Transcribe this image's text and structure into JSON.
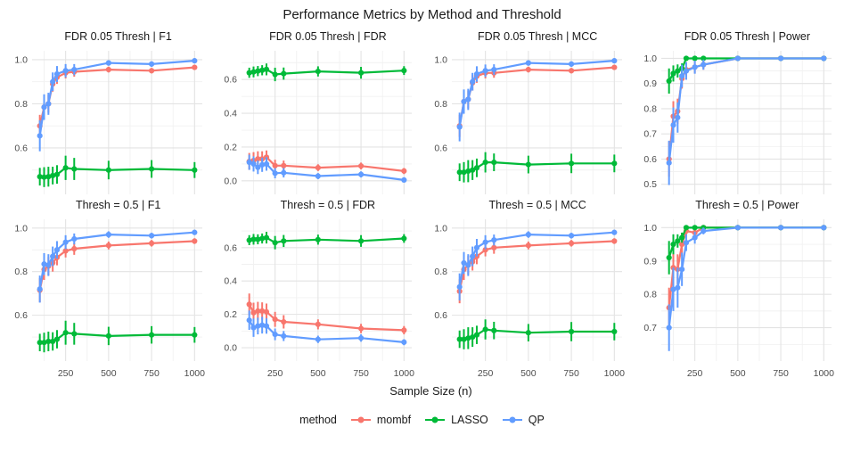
{
  "figure": {
    "title": "Performance Metrics by Method and Threshold",
    "x_axis_label": "Sample Size (n)"
  },
  "legend": {
    "label": "method",
    "position": "bottom",
    "items": [
      {
        "name": "mombf",
        "color": "#F8766D"
      },
      {
        "name": "LASSO",
        "color": "#00BA38"
      },
      {
        "name": "QP",
        "color": "#619CFF"
      }
    ]
  },
  "chart_data": {
    "type": "line",
    "title": "Performance Metrics by Method and Threshold",
    "xlabel": "Sample Size (n)",
    "x": [
      100,
      125,
      150,
      175,
      200,
      250,
      300,
      500,
      750,
      1000
    ],
    "xticks": [
      250,
      500,
      750,
      1000
    ],
    "xlim": [
      55,
      1045
    ],
    "grid": "major+minor",
    "error_bars": true,
    "facet_rows": [
      "FDR 0.05 Thresh",
      "Thresh = 0.5"
    ],
    "facet_cols": [
      "F1",
      "FDR",
      "MCC",
      "Power"
    ],
    "panels": [
      {
        "title": "FDR 0.05 Thresh | F1",
        "metric": "F1",
        "threshold": "FDR 0.05 Thresh",
        "yticks": [
          0.6,
          0.8,
          1.0
        ],
        "ylim": [
          0.39,
          1.04
        ],
        "series": [
          {
            "name": "mombf",
            "values": [
              0.7,
              0.785,
              0.8,
              0.89,
              0.92,
              0.94,
              0.945,
              0.955,
              0.95,
              0.965
            ],
            "err": [
              0.05,
              0.045,
              0.04,
              0.035,
              0.03,
              0.025,
              0.022,
              0.013,
              0.012,
              0.01
            ]
          },
          {
            "name": "LASSO",
            "values": [
              0.47,
              0.468,
              0.47,
              0.475,
              0.48,
              0.51,
              0.505,
              0.5,
              0.505,
              0.5
            ],
            "err": [
              0.04,
              0.045,
              0.045,
              0.04,
              0.042,
              0.055,
              0.05,
              0.042,
              0.04,
              0.036
            ]
          },
          {
            "name": "QP",
            "values": [
              0.655,
              0.785,
              0.8,
              0.9,
              0.935,
              0.95,
              0.955,
              0.985,
              0.98,
              0.995
            ],
            "err": [
              0.07,
              0.058,
              0.05,
              0.042,
              0.036,
              0.03,
              0.025,
              0.012,
              0.012,
              0.008
            ]
          }
        ]
      },
      {
        "title": "FDR 0.05 Thresh | FDR",
        "metric": "FDR",
        "threshold": "FDR 0.05 Thresh",
        "yticks": [
          0.0,
          0.2,
          0.4,
          0.6
        ],
        "ylim": [
          -0.08,
          0.77
        ],
        "series": [
          {
            "name": "mombf",
            "values": [
              0.115,
              0.12,
              0.13,
              0.13,
              0.14,
              0.09,
              0.09,
              0.078,
              0.088,
              0.058
            ],
            "err": [
              0.05,
              0.05,
              0.045,
              0.045,
              0.04,
              0.035,
              0.03,
              0.02,
              0.02,
              0.018
            ]
          },
          {
            "name": "LASSO",
            "values": [
              0.64,
              0.645,
              0.65,
              0.655,
              0.66,
              0.63,
              0.635,
              0.648,
              0.64,
              0.653
            ],
            "err": [
              0.03,
              0.032,
              0.03,
              0.03,
              0.035,
              0.04,
              0.036,
              0.03,
              0.035,
              0.026
            ]
          },
          {
            "name": "QP",
            "values": [
              0.11,
              0.1,
              0.08,
              0.095,
              0.1,
              0.045,
              0.048,
              0.028,
              0.038,
              0.005
            ],
            "err": [
              0.045,
              0.045,
              0.04,
              0.042,
              0.04,
              0.03,
              0.028,
              0.018,
              0.018,
              0.01
            ]
          }
        ]
      },
      {
        "title": "FDR 0.05 Thresh | MCC",
        "metric": "MCC",
        "threshold": "FDR 0.05 Thresh",
        "yticks": [
          0.6,
          0.8,
          1.0
        ],
        "ylim": [
          0.39,
          1.04
        ],
        "series": [
          {
            "name": "mombf",
            "values": [
              0.7,
              0.81,
              0.82,
              0.895,
              0.925,
              0.94,
              0.94,
              0.955,
              0.95,
              0.965
            ],
            "err": [
              0.05,
              0.045,
              0.04,
              0.035,
              0.03,
              0.025,
              0.022,
              0.013,
              0.012,
              0.01
            ]
          },
          {
            "name": "LASSO",
            "values": [
              0.49,
              0.49,
              0.495,
              0.5,
              0.51,
              0.535,
              0.535,
              0.525,
              0.53,
              0.53
            ],
            "err": [
              0.04,
              0.046,
              0.05,
              0.045,
              0.042,
              0.046,
              0.04,
              0.04,
              0.044,
              0.04
            ]
          },
          {
            "name": "QP",
            "values": [
              0.695,
              0.81,
              0.82,
              0.9,
              0.935,
              0.95,
              0.955,
              0.985,
              0.98,
              0.995
            ],
            "err": [
              0.065,
              0.055,
              0.048,
              0.04,
              0.035,
              0.028,
              0.024,
              0.012,
              0.012,
              0.008
            ]
          }
        ]
      },
      {
        "title": "FDR 0.05 Thresh | Power",
        "metric": "Power",
        "threshold": "FDR 0.05 Thresh",
        "yticks": [
          0.5,
          0.6,
          0.7,
          0.8,
          0.9,
          1.0
        ],
        "ylim": [
          0.46,
          1.03
        ],
        "series": [
          {
            "name": "mombf",
            "values": [
              0.6,
              0.77,
              0.79,
              0.92,
              0.955,
              0.965,
              0.975,
              1.0,
              1.0,
              1.0
            ],
            "err": [
              0.07,
              0.06,
              0.05,
              0.04,
              0.03,
              0.025,
              0.02,
              0.004,
              0.003,
              0.003
            ]
          },
          {
            "name": "LASSO",
            "values": [
              0.91,
              0.94,
              0.95,
              0.96,
              1.0,
              1.0,
              1.0,
              1.0,
              1.0,
              1.0
            ],
            "err": [
              0.05,
              0.032,
              0.026,
              0.02,
              0.006,
              0.004,
              0.004,
              0.003,
              0.003,
              0.002
            ]
          },
          {
            "name": "QP",
            "values": [
              0.585,
              0.735,
              0.765,
              0.93,
              0.95,
              0.965,
              0.975,
              1.0,
              1.0,
              1.0
            ],
            "err": [
              0.088,
              0.07,
              0.06,
              0.045,
              0.035,
              0.026,
              0.02,
              0.004,
              0.003,
              0.003
            ]
          }
        ]
      },
      {
        "title": "Thresh = 0.5 | F1",
        "metric": "F1",
        "threshold": "Thresh = 0.5",
        "yticks": [
          0.6,
          0.8,
          1.0
        ],
        "ylim": [
          0.39,
          1.04
        ],
        "series": [
          {
            "name": "mombf",
            "values": [
              0.715,
              0.81,
              0.825,
              0.84,
              0.865,
              0.895,
              0.905,
              0.92,
              0.93,
              0.94
            ],
            "err": [
              0.055,
              0.048,
              0.042,
              0.04,
              0.036,
              0.03,
              0.028,
              0.018,
              0.015,
              0.013
            ]
          },
          {
            "name": "LASSO",
            "values": [
              0.475,
              0.475,
              0.48,
              0.48,
              0.49,
              0.52,
              0.515,
              0.505,
              0.51,
              0.51
            ],
            "err": [
              0.04,
              0.045,
              0.045,
              0.042,
              0.042,
              0.055,
              0.05,
              0.042,
              0.04,
              0.036
            ]
          },
          {
            "name": "QP",
            "values": [
              0.72,
              0.835,
              0.83,
              0.87,
              0.9,
              0.935,
              0.95,
              0.97,
              0.965,
              0.98
            ],
            "err": [
              0.062,
              0.05,
              0.05,
              0.045,
              0.04,
              0.032,
              0.025,
              0.015,
              0.013,
              0.012
            ]
          }
        ]
      },
      {
        "title": "Thresh = 0.5 | FDR",
        "metric": "FDR",
        "threshold": "Thresh = 0.5",
        "yticks": [
          0.0,
          0.2,
          0.4,
          0.6
        ],
        "ylim": [
          -0.08,
          0.77
        ],
        "series": [
          {
            "name": "mombf",
            "values": [
              0.26,
              0.21,
              0.22,
              0.22,
              0.215,
              0.17,
              0.155,
              0.14,
              0.115,
              0.105
            ],
            "err": [
              0.065,
              0.06,
              0.055,
              0.052,
              0.05,
              0.045,
              0.04,
              0.03,
              0.028,
              0.025
            ]
          },
          {
            "name": "LASSO",
            "values": [
              0.645,
              0.65,
              0.65,
              0.655,
              0.66,
              0.63,
              0.64,
              0.648,
              0.64,
              0.655
            ],
            "err": [
              0.03,
              0.032,
              0.03,
              0.03,
              0.035,
              0.04,
              0.036,
              0.03,
              0.035,
              0.026
            ]
          },
          {
            "name": "QP",
            "values": [
              0.165,
              0.12,
              0.13,
              0.135,
              0.13,
              0.08,
              0.07,
              0.05,
              0.058,
              0.033
            ],
            "err": [
              0.058,
              0.055,
              0.05,
              0.05,
              0.046,
              0.035,
              0.03,
              0.022,
              0.022,
              0.018
            ]
          }
        ]
      },
      {
        "title": "Thresh = 0.5 | MCC",
        "metric": "MCC",
        "threshold": "Thresh = 0.5",
        "yticks": [
          0.6,
          0.8,
          1.0
        ],
        "ylim": [
          0.39,
          1.04
        ],
        "series": [
          {
            "name": "mombf",
            "values": [
              0.71,
              0.81,
              0.83,
              0.845,
              0.87,
              0.9,
              0.91,
              0.92,
              0.93,
              0.94
            ],
            "err": [
              0.055,
              0.048,
              0.042,
              0.04,
              0.036,
              0.03,
              0.028,
              0.018,
              0.015,
              0.013
            ]
          },
          {
            "name": "LASSO",
            "values": [
              0.49,
              0.49,
              0.495,
              0.5,
              0.51,
              0.535,
              0.53,
              0.52,
              0.525,
              0.525
            ],
            "err": [
              0.04,
              0.046,
              0.05,
              0.045,
              0.042,
              0.046,
              0.04,
              0.04,
              0.044,
              0.04
            ]
          },
          {
            "name": "QP",
            "values": [
              0.73,
              0.84,
              0.83,
              0.87,
              0.91,
              0.935,
              0.945,
              0.97,
              0.965,
              0.98
            ],
            "err": [
              0.062,
              0.05,
              0.05,
              0.045,
              0.04,
              0.032,
              0.025,
              0.015,
              0.013,
              0.012
            ]
          }
        ]
      },
      {
        "title": "Thresh = 0.5 | Power",
        "metric": "Power",
        "threshold": "Thresh = 0.5",
        "yticks": [
          0.7,
          0.8,
          0.9,
          1.0
        ],
        "ylim": [
          0.6,
          1.025
        ],
        "series": [
          {
            "name": "mombf",
            "values": [
              0.76,
              0.88,
              0.875,
              0.95,
              0.99,
              0.985,
              1.0,
              1.0,
              1.0,
              1.0
            ],
            "err": [
              0.06,
              0.05,
              0.045,
              0.035,
              0.012,
              0.012,
              0.005,
              0.003,
              0.003,
              0.002
            ]
          },
          {
            "name": "LASSO",
            "values": [
              0.91,
              0.95,
              0.96,
              0.97,
              1.0,
              1.0,
              1.0,
              1.0,
              1.0,
              1.0
            ],
            "err": [
              0.05,
              0.03,
              0.02,
              0.015,
              0.005,
              0.004,
              0.003,
              0.003,
              0.002,
              0.002
            ]
          },
          {
            "name": "QP",
            "values": [
              0.7,
              0.815,
              0.82,
              0.875,
              0.955,
              0.97,
              0.99,
              1.0,
              1.0,
              1.0
            ],
            "err": [
              0.07,
              0.065,
              0.06,
              0.05,
              0.025,
              0.018,
              0.01,
              0.003,
              0.002,
              0.002
            ]
          }
        ]
      }
    ],
    "style": {
      "grid_major_color": "#e3e3e3",
      "grid_minor_color": "#f1f1f1",
      "tick_label_color": "#4d4d4d",
      "background": "#ffffff"
    }
  }
}
